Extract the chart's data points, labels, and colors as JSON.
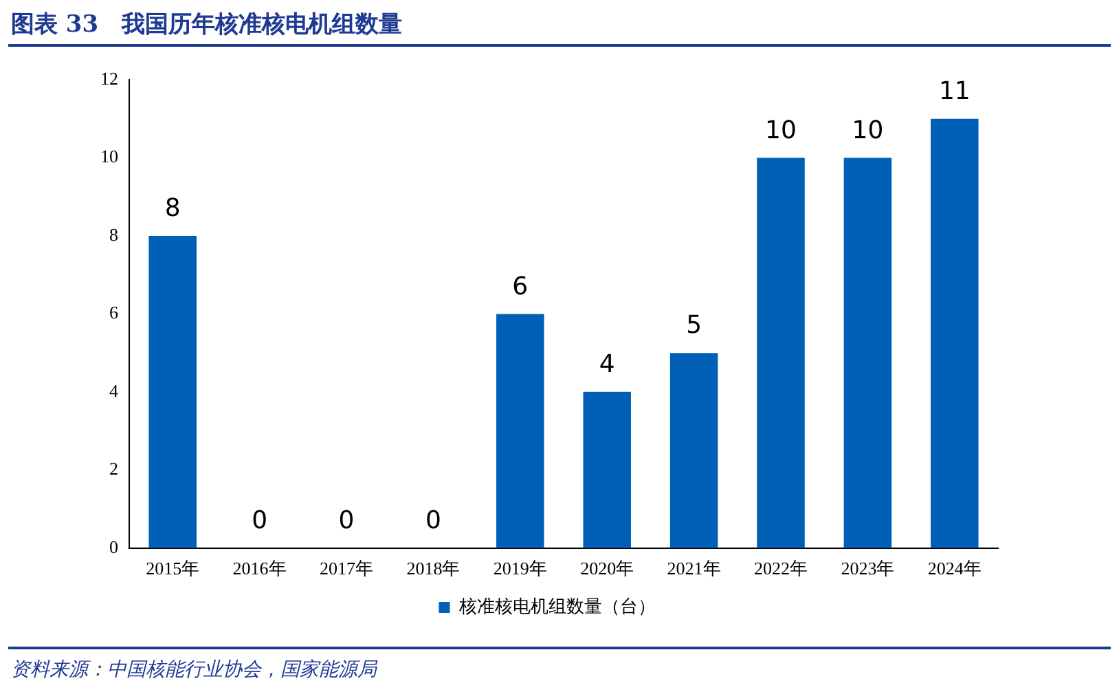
{
  "chart_data": {
    "type": "bar",
    "title": "图表 33　我国历年核准核电机组数量",
    "categories": [
      "2015年",
      "2016年",
      "2017年",
      "2018年",
      "2019年",
      "2020年",
      "2021年",
      "2022年",
      "2023年",
      "2024年"
    ],
    "series": [
      {
        "name": "核准核电机组数量（台）",
        "color": "#0060b8",
        "values": [
          8,
          0,
          0,
          0,
          6,
          4,
          5,
          10,
          10,
          11
        ]
      }
    ],
    "ylim": [
      0,
      12
    ],
    "yticks": [
      0,
      2,
      4,
      6,
      8,
      10,
      12
    ],
    "grid": false,
    "legend": "bottom",
    "data_labels": true,
    "annotations": [
      "资料来源：中国核能行业协会，国家能源局"
    ]
  }
}
